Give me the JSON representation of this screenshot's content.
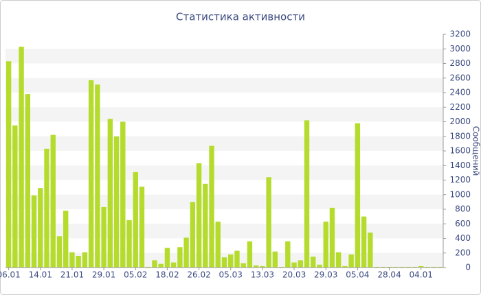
{
  "chart_data": {
    "type": "bar",
    "title": "Статистика активности",
    "y_label": "Сообщений",
    "categories": [
      "06.01",
      null,
      null,
      null,
      null,
      "14.01",
      null,
      null,
      null,
      null,
      "21.01",
      null,
      null,
      null,
      null,
      "29.01",
      null,
      null,
      null,
      null,
      "05.02",
      null,
      null,
      null,
      null,
      "18.02",
      null,
      null,
      null,
      null,
      "26.02",
      null,
      null,
      null,
      null,
      "05.03",
      null,
      null,
      null,
      null,
      "13.03",
      null,
      null,
      null,
      null,
      "20.03",
      null,
      null,
      null,
      null,
      "29.03",
      null,
      null,
      null,
      null,
      "05.04",
      null,
      null,
      null,
      null,
      "28.04",
      null,
      null,
      null,
      null,
      "04.01",
      null,
      null,
      null
    ],
    "values": [
      2830,
      1950,
      3030,
      2380,
      990,
      1090,
      1630,
      1820,
      430,
      780,
      210,
      160,
      210,
      2570,
      2510,
      830,
      2040,
      1800,
      2000,
      650,
      1310,
      1110,
      10,
      100,
      50,
      270,
      70,
      280,
      410,
      900,
      1430,
      1150,
      1670,
      630,
      140,
      180,
      230,
      60,
      360,
      30,
      20,
      1240,
      220,
      10,
      360,
      70,
      100,
      2020,
      150,
      40,
      630,
      820,
      210,
      20,
      180,
      1980,
      700,
      480,
      10,
      10,
      10,
      10,
      10,
      10,
      10,
      20,
      10,
      10,
      10
    ],
    "color": "#b5dc2c",
    "ylim": [
      0,
      3200
    ],
    "yticks": [
      0,
      200,
      400,
      600,
      800,
      1000,
      1200,
      1400,
      1600,
      1800,
      2000,
      2200,
      2400,
      2600,
      2800,
      3000,
      3200
    ],
    "grid": true
  }
}
